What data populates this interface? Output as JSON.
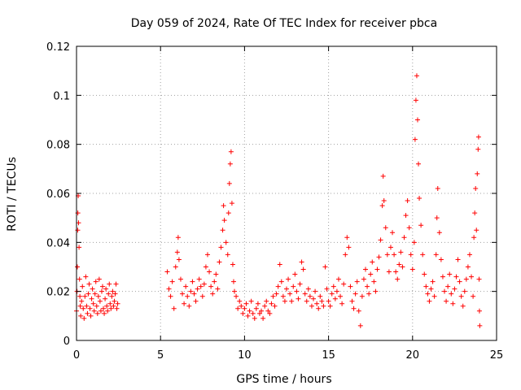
{
  "chart_data": {
    "type": "scatter",
    "title": "Day 059 of 2024, Rate Of TEC Index for receiver pbca",
    "xlabel": "GPS time / hours",
    "ylabel": "ROTI / TECUs",
    "xlim": [
      0,
      25
    ],
    "ylim": [
      0,
      0.12
    ],
    "x_ticks": [
      0,
      5,
      10,
      15,
      20,
      25
    ],
    "x_tick_labels": [
      "0",
      "5",
      "10",
      "15",
      "20",
      "25"
    ],
    "y_ticks": [
      0,
      0.02,
      0.04,
      0.06,
      0.08,
      0.1,
      0.12
    ],
    "y_tick_labels": [
      "0",
      "0.02",
      "0.04",
      "0.06",
      "0.08",
      "0.1",
      "0.12"
    ],
    "grid": true,
    "marker": "+",
    "color": "#ff0000",
    "series": [
      {
        "name": "ROTI",
        "points": [
          [
            0.0,
            0.012
          ],
          [
            0.03,
            0.02
          ],
          [
            0.05,
            0.03
          ],
          [
            0.07,
            0.045
          ],
          [
            0.08,
            0.052
          ],
          [
            0.1,
            0.059
          ],
          [
            0.12,
            0.048
          ],
          [
            0.15,
            0.038
          ],
          [
            0.18,
            0.025
          ],
          [
            0.2,
            0.018
          ],
          [
            0.22,
            0.014
          ],
          [
            0.25,
            0.01
          ],
          [
            0.3,
            0.016
          ],
          [
            0.35,
            0.022
          ],
          [
            0.4,
            0.013
          ],
          [
            0.45,
            0.009
          ],
          [
            0.5,
            0.018
          ],
          [
            0.55,
            0.026
          ],
          [
            0.6,
            0.014
          ],
          [
            0.65,
            0.011
          ],
          [
            0.7,
            0.019
          ],
          [
            0.75,
            0.023
          ],
          [
            0.8,
            0.013
          ],
          [
            0.85,
            0.01
          ],
          [
            0.9,
            0.017
          ],
          [
            0.95,
            0.021
          ],
          [
            1.0,
            0.015
          ],
          [
            1.05,
            0.012
          ],
          [
            1.1,
            0.019
          ],
          [
            1.15,
            0.024
          ],
          [
            1.2,
            0.014
          ],
          [
            1.25,
            0.011
          ],
          [
            1.3,
            0.018
          ],
          [
            1.35,
            0.025
          ],
          [
            1.4,
            0.016
          ],
          [
            1.45,
            0.012
          ],
          [
            1.5,
            0.02
          ],
          [
            1.55,
            0.022
          ],
          [
            1.6,
            0.013
          ],
          [
            1.65,
            0.011
          ],
          [
            1.7,
            0.017
          ],
          [
            1.75,
            0.021
          ],
          [
            1.8,
            0.014
          ],
          [
            1.85,
            0.012
          ],
          [
            1.9,
            0.019
          ],
          [
            1.95,
            0.023
          ],
          [
            2.0,
            0.015
          ],
          [
            2.05,
            0.013
          ],
          [
            2.1,
            0.018
          ],
          [
            2.15,
            0.02
          ],
          [
            2.2,
            0.014
          ],
          [
            2.25,
            0.016
          ],
          [
            2.3,
            0.019
          ],
          [
            2.35,
            0.023
          ],
          [
            2.4,
            0.013
          ],
          [
            2.45,
            0.015
          ],
          [
            5.4,
            0.028
          ],
          [
            5.5,
            0.021
          ],
          [
            5.6,
            0.018
          ],
          [
            5.7,
            0.024
          ],
          [
            5.8,
            0.013
          ],
          [
            5.9,
            0.03
          ],
          [
            6.0,
            0.036
          ],
          [
            6.05,
            0.042
          ],
          [
            6.1,
            0.033
          ],
          [
            6.2,
            0.025
          ],
          [
            6.3,
            0.019
          ],
          [
            6.4,
            0.015
          ],
          [
            6.5,
            0.022
          ],
          [
            6.6,
            0.018
          ],
          [
            6.7,
            0.014
          ],
          [
            6.8,
            0.02
          ],
          [
            6.9,
            0.024
          ],
          [
            7.0,
            0.019
          ],
          [
            7.1,
            0.016
          ],
          [
            7.2,
            0.021
          ],
          [
            7.3,
            0.025
          ],
          [
            7.4,
            0.022
          ],
          [
            7.5,
            0.018
          ],
          [
            7.6,
            0.023
          ],
          [
            7.7,
            0.03
          ],
          [
            7.8,
            0.035
          ],
          [
            7.9,
            0.028
          ],
          [
            8.0,
            0.022
          ],
          [
            8.1,
            0.019
          ],
          [
            8.2,
            0.024
          ],
          [
            8.3,
            0.027
          ],
          [
            8.4,
            0.021
          ],
          [
            8.5,
            0.032
          ],
          [
            8.6,
            0.038
          ],
          [
            8.7,
            0.045
          ],
          [
            8.75,
            0.055
          ],
          [
            8.8,
            0.049
          ],
          [
            8.9,
            0.04
          ],
          [
            9.0,
            0.035
          ],
          [
            9.05,
            0.052
          ],
          [
            9.1,
            0.064
          ],
          [
            9.15,
            0.072
          ],
          [
            9.2,
            0.077
          ],
          [
            9.25,
            0.056
          ],
          [
            9.3,
            0.031
          ],
          [
            9.35,
            0.024
          ],
          [
            9.4,
            0.02
          ],
          [
            9.5,
            0.018
          ],
          [
            9.6,
            0.013
          ],
          [
            9.7,
            0.016
          ],
          [
            9.8,
            0.014
          ],
          [
            9.9,
            0.011
          ],
          [
            10.0,
            0.013
          ],
          [
            10.1,
            0.015
          ],
          [
            10.2,
            0.01
          ],
          [
            10.3,
            0.012
          ],
          [
            10.4,
            0.016
          ],
          [
            10.5,
            0.011
          ],
          [
            10.6,
            0.009
          ],
          [
            10.7,
            0.013
          ],
          [
            10.8,
            0.015
          ],
          [
            10.9,
            0.011
          ],
          [
            11.0,
            0.012
          ],
          [
            11.1,
            0.009
          ],
          [
            11.2,
            0.014
          ],
          [
            11.3,
            0.016
          ],
          [
            11.4,
            0.012
          ],
          [
            11.5,
            0.011
          ],
          [
            11.6,
            0.015
          ],
          [
            11.7,
            0.018
          ],
          [
            11.8,
            0.014
          ],
          [
            11.9,
            0.019
          ],
          [
            12.0,
            0.022
          ],
          [
            12.1,
            0.031
          ],
          [
            12.2,
            0.024
          ],
          [
            12.3,
            0.018
          ],
          [
            12.4,
            0.016
          ],
          [
            12.5,
            0.021
          ],
          [
            12.6,
            0.025
          ],
          [
            12.7,
            0.019
          ],
          [
            12.8,
            0.016
          ],
          [
            12.9,
            0.022
          ],
          [
            13.0,
            0.027
          ],
          [
            13.1,
            0.02
          ],
          [
            13.2,
            0.017
          ],
          [
            13.3,
            0.023
          ],
          [
            13.4,
            0.032
          ],
          [
            13.5,
            0.029
          ],
          [
            13.6,
            0.019
          ],
          [
            13.7,
            0.016
          ],
          [
            13.8,
            0.021
          ],
          [
            13.9,
            0.018
          ],
          [
            14.0,
            0.014
          ],
          [
            14.1,
            0.017
          ],
          [
            14.2,
            0.02
          ],
          [
            14.3,
            0.015
          ],
          [
            14.4,
            0.013
          ],
          [
            14.5,
            0.018
          ],
          [
            14.6,
            0.016
          ],
          [
            14.7,
            0.014
          ],
          [
            14.8,
            0.03
          ],
          [
            14.9,
            0.021
          ],
          [
            15.0,
            0.016
          ],
          [
            15.1,
            0.014
          ],
          [
            15.2,
            0.019
          ],
          [
            15.3,
            0.022
          ],
          [
            15.4,
            0.017
          ],
          [
            15.5,
            0.02
          ],
          [
            15.6,
            0.025
          ],
          [
            15.7,
            0.018
          ],
          [
            15.8,
            0.015
          ],
          [
            15.9,
            0.023
          ],
          [
            16.0,
            0.035
          ],
          [
            16.1,
            0.042
          ],
          [
            16.2,
            0.038
          ],
          [
            16.3,
            0.022
          ],
          [
            16.4,
            0.016
          ],
          [
            16.5,
            0.013
          ],
          [
            16.6,
            0.019
          ],
          [
            16.7,
            0.024
          ],
          [
            16.8,
            0.012
          ],
          [
            16.9,
            0.006
          ],
          [
            17.0,
            0.018
          ],
          [
            17.1,
            0.025
          ],
          [
            17.2,
            0.029
          ],
          [
            17.3,
            0.022
          ],
          [
            17.4,
            0.019
          ],
          [
            17.5,
            0.027
          ],
          [
            17.6,
            0.032
          ],
          [
            17.7,
            0.024
          ],
          [
            17.8,
            0.02
          ],
          [
            17.9,
            0.029
          ],
          [
            18.0,
            0.034
          ],
          [
            18.1,
            0.041
          ],
          [
            18.2,
            0.055
          ],
          [
            18.25,
            0.067
          ],
          [
            18.3,
            0.057
          ],
          [
            18.4,
            0.046
          ],
          [
            18.5,
            0.035
          ],
          [
            18.6,
            0.028
          ],
          [
            18.7,
            0.038
          ],
          [
            18.8,
            0.044
          ],
          [
            18.9,
            0.035
          ],
          [
            19.0,
            0.028
          ],
          [
            19.1,
            0.025
          ],
          [
            19.2,
            0.031
          ],
          [
            19.3,
            0.036
          ],
          [
            19.4,
            0.03
          ],
          [
            19.5,
            0.042
          ],
          [
            19.6,
            0.051
          ],
          [
            19.7,
            0.057
          ],
          [
            19.8,
            0.046
          ],
          [
            19.9,
            0.035
          ],
          [
            20.0,
            0.029
          ],
          [
            20.1,
            0.04
          ],
          [
            20.15,
            0.082
          ],
          [
            20.2,
            0.098
          ],
          [
            20.25,
            0.108
          ],
          [
            20.3,
            0.09
          ],
          [
            20.35,
            0.072
          ],
          [
            20.4,
            0.058
          ],
          [
            20.5,
            0.047
          ],
          [
            20.6,
            0.035
          ],
          [
            20.7,
            0.027
          ],
          [
            20.8,
            0.022
          ],
          [
            20.9,
            0.019
          ],
          [
            21.0,
            0.016
          ],
          [
            21.1,
            0.021
          ],
          [
            21.2,
            0.024
          ],
          [
            21.3,
            0.018
          ],
          [
            21.4,
            0.035
          ],
          [
            21.45,
            0.05
          ],
          [
            21.5,
            0.062
          ],
          [
            21.6,
            0.044
          ],
          [
            21.7,
            0.033
          ],
          [
            21.8,
            0.026
          ],
          [
            21.9,
            0.02
          ],
          [
            22.0,
            0.016
          ],
          [
            22.1,
            0.022
          ],
          [
            22.2,
            0.027
          ],
          [
            22.3,
            0.019
          ],
          [
            22.4,
            0.015
          ],
          [
            22.5,
            0.021
          ],
          [
            22.6,
            0.026
          ],
          [
            22.7,
            0.033
          ],
          [
            22.8,
            0.024
          ],
          [
            22.9,
            0.018
          ],
          [
            23.0,
            0.014
          ],
          [
            23.1,
            0.02
          ],
          [
            23.2,
            0.025
          ],
          [
            23.3,
            0.03
          ],
          [
            23.4,
            0.035
          ],
          [
            23.5,
            0.026
          ],
          [
            23.6,
            0.018
          ],
          [
            23.65,
            0.042
          ],
          [
            23.7,
            0.052
          ],
          [
            23.75,
            0.062
          ],
          [
            23.8,
            0.045
          ],
          [
            23.85,
            0.068
          ],
          [
            23.9,
            0.078
          ],
          [
            23.93,
            0.083
          ],
          [
            23.96,
            0.025
          ],
          [
            23.98,
            0.012
          ],
          [
            24.0,
            0.006
          ]
        ]
      }
    ]
  }
}
